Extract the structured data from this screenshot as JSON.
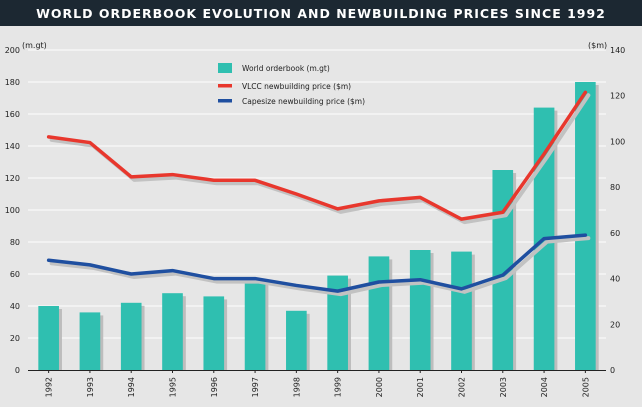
{
  "chart_data": {
    "type": "bar",
    "title": "WORLD ORDERBOOK EVOLUTION AND NEWBUILDING PRICES SINCE 1992",
    "left_axis_unit": "(m.gt)",
    "right_axis_unit": "($m)",
    "categories": [
      "1992",
      "1993",
      "1994",
      "1995",
      "1996",
      "1997",
      "1998",
      "1999",
      "2000",
      "2001",
      "2002",
      "2003",
      "2004",
      "2005"
    ],
    "y_left_lim": [
      0,
      200
    ],
    "y_left_ticks": [
      0,
      20,
      40,
      60,
      80,
      100,
      120,
      140,
      160,
      180,
      200
    ],
    "y_right_lim": [
      0,
      140
    ],
    "y_right_ticks": [
      0,
      20,
      40,
      60,
      80,
      100,
      120,
      140
    ],
    "grid": true,
    "legend_position": "top-center",
    "series": [
      {
        "name": "World orderbook (m.gt)",
        "kind": "bar",
        "axis": "left",
        "color": "#2fbfb0",
        "values": [
          40,
          36,
          42,
          48,
          46,
          57,
          37,
          59,
          71,
          75,
          74,
          125,
          164,
          180
        ]
      },
      {
        "name": "VLCC newbuilding price ($m)",
        "kind": "line",
        "axis": "right",
        "color": "#e8372d",
        "values": [
          102,
          99.5,
          84.5,
          85.5,
          83,
          83,
          77,
          70.5,
          74,
          75.5,
          66,
          69,
          94.5,
          121.5
        ]
      },
      {
        "name": "Capesize newbuilding price ($m)",
        "kind": "line",
        "axis": "right",
        "color": "#1f4fa0",
        "values": [
          48,
          46,
          42,
          43.5,
          40,
          40,
          37,
          34.5,
          38.5,
          39.5,
          35.5,
          41.5,
          57.5,
          59
        ]
      }
    ]
  }
}
